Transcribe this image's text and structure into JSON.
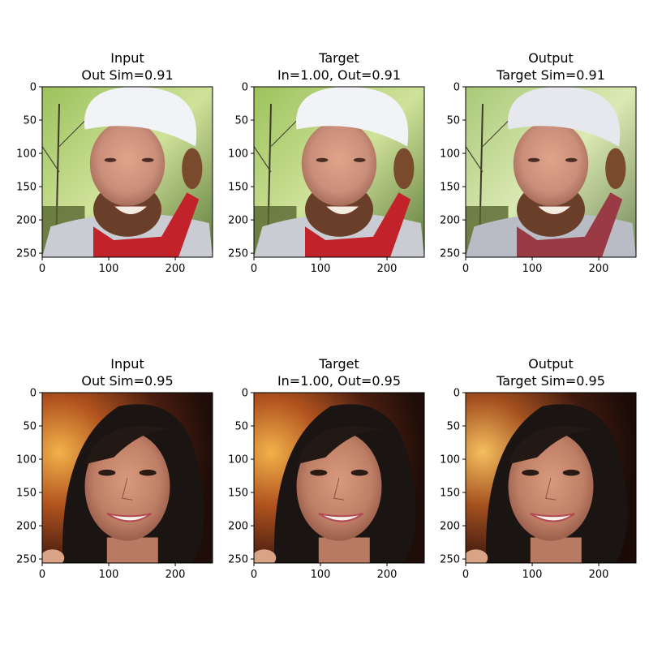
{
  "chart_data": [
    {
      "type": "image",
      "row": 0,
      "title_line1": "Input",
      "title_line2": "Out Sim=0.91",
      "subject": "bearded man wearing white head wrap, red scarf, trees background",
      "variant": "input",
      "xlim": [
        0,
        256
      ],
      "ylim": [
        256,
        0
      ],
      "xticks": [
        0,
        100,
        200
      ],
      "yticks": [
        0,
        50,
        100,
        150,
        200,
        250
      ]
    },
    {
      "type": "image",
      "row": 0,
      "title_line1": "Target",
      "title_line2": "In=1.00, Out=0.91",
      "subject": "bearded man wearing white head wrap, red scarf, trees background",
      "variant": "target",
      "xlim": [
        0,
        256
      ],
      "ylim": [
        256,
        0
      ],
      "xticks": [
        0,
        100,
        200
      ],
      "yticks": [
        0,
        50,
        100,
        150,
        200,
        250
      ]
    },
    {
      "type": "image",
      "row": 0,
      "title_line1": "Output",
      "title_line2": "Target Sim=0.91",
      "subject": "bearded man wearing white head wrap, red scarf, trees background",
      "variant": "output",
      "xlim": [
        0,
        256
      ],
      "ylim": [
        256,
        0
      ],
      "xticks": [
        0,
        100,
        200
      ],
      "yticks": [
        0,
        50,
        100,
        150,
        200,
        250
      ]
    },
    {
      "type": "image",
      "row": 1,
      "title_line1": "Input",
      "title_line2": "Out Sim=0.95",
      "subject": "smiling woman with dark hair, warm blurred background",
      "variant": "input",
      "xlim": [
        0,
        256
      ],
      "ylim": [
        256,
        0
      ],
      "xticks": [
        0,
        100,
        200
      ],
      "yticks": [
        0,
        50,
        100,
        150,
        200,
        250
      ]
    },
    {
      "type": "image",
      "row": 1,
      "title_line1": "Target",
      "title_line2": "In=1.00, Out=0.95",
      "subject": "smiling woman with dark hair, warm blurred background",
      "variant": "target",
      "xlim": [
        0,
        256
      ],
      "ylim": [
        256,
        0
      ],
      "xticks": [
        0,
        100,
        200
      ],
      "yticks": [
        0,
        50,
        100,
        150,
        200,
        250
      ]
    },
    {
      "type": "image",
      "row": 1,
      "title_line1": "Output",
      "title_line2": "Target Sim=0.95",
      "subject": "smiling woman with dark hair, warm blurred background",
      "variant": "output",
      "xlim": [
        0,
        256
      ],
      "ylim": [
        256,
        0
      ],
      "xticks": [
        0,
        100,
        200
      ],
      "yticks": [
        0,
        50,
        100,
        150,
        200,
        250
      ]
    }
  ]
}
